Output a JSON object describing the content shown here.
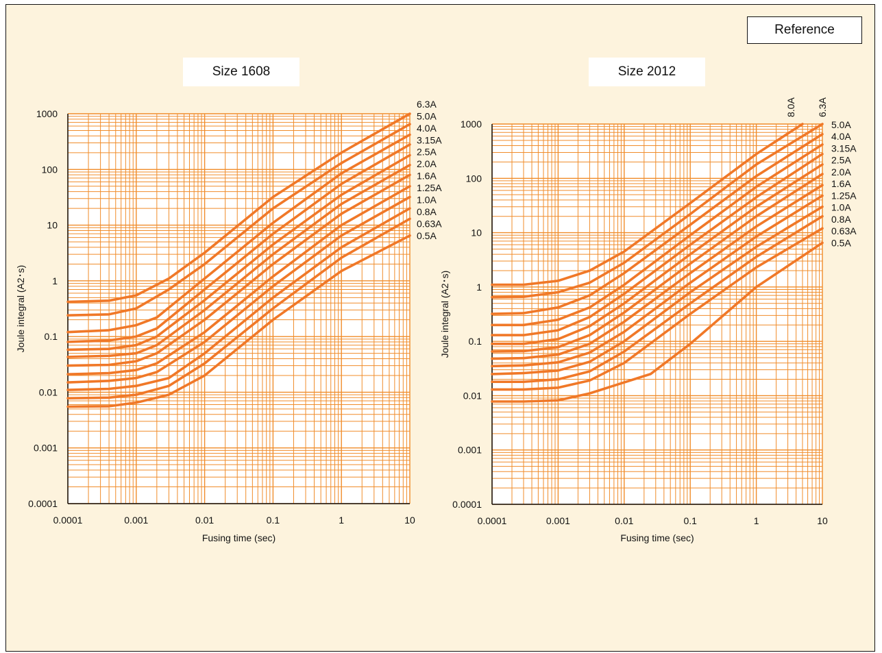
{
  "reference_label": "Reference",
  "colors": {
    "background": "#fdf3dd",
    "grid": "#f08c2a",
    "curve": "#f07828",
    "text": "#111111"
  },
  "chart_data": [
    {
      "type": "line",
      "title": "Size 1608",
      "xlabel": "Fusing time (sec)",
      "ylabel": "Joule integral (A2･s)",
      "xscale": "log",
      "yscale": "log",
      "xlim": [
        0.0001,
        10
      ],
      "ylim": [
        0.0001,
        1000
      ],
      "xticks": [
        "0.0001",
        "0.001",
        "0.01",
        "0.1",
        "1",
        "10"
      ],
      "yticks": [
        "0.0001",
        "0.001",
        "0.01",
        "0.1",
        "1",
        "10",
        "100",
        "1000"
      ],
      "grid": true,
      "legend": "series labels at right end of curves",
      "series": [
        {
          "name": "6.3A",
          "x": [
            0.0001,
            0.0004,
            0.001,
            0.003,
            0.01,
            0.1,
            1,
            10
          ],
          "y": [
            0.42,
            0.44,
            0.55,
            1.1,
            3.2,
            32,
            200,
            1000
          ]
        },
        {
          "name": "5.0A",
          "x": [
            0.0001,
            0.0004,
            0.001,
            0.003,
            0.01,
            0.1,
            1,
            10
          ],
          "y": [
            0.24,
            0.25,
            0.32,
            0.7,
            2,
            20,
            130,
            650
          ]
        },
        {
          "name": "4.0A",
          "x": [
            0.0001,
            0.0004,
            0.001,
            0.002,
            0.01,
            0.1,
            1,
            10
          ],
          "y": [
            0.12,
            0.13,
            0.16,
            0.22,
            1.1,
            11,
            85,
            420
          ]
        },
        {
          "name": "3.15A",
          "x": [
            0.0001,
            0.0004,
            0.001,
            0.002,
            0.01,
            0.1,
            1,
            10
          ],
          "y": [
            0.08,
            0.085,
            0.1,
            0.14,
            0.7,
            7,
            55,
            280
          ]
        },
        {
          "name": "2.5A",
          "x": [
            0.0001,
            0.0004,
            0.001,
            0.002,
            0.01,
            0.1,
            1,
            10
          ],
          "y": [
            0.058,
            0.06,
            0.07,
            0.1,
            0.45,
            4.5,
            35,
            180
          ]
        },
        {
          "name": "2.0A",
          "x": [
            0.0001,
            0.0004,
            0.001,
            0.002,
            0.01,
            0.1,
            1,
            10
          ],
          "y": [
            0.043,
            0.045,
            0.05,
            0.07,
            0.3,
            3,
            24,
            120
          ]
        },
        {
          "name": "1.6A",
          "x": [
            0.0001,
            0.0004,
            0.001,
            0.002,
            0.01,
            0.1,
            1,
            10
          ],
          "y": [
            0.03,
            0.031,
            0.036,
            0.05,
            0.2,
            2,
            16,
            80
          ]
        },
        {
          "name": "1.25A",
          "x": [
            0.0001,
            0.0004,
            0.001,
            0.002,
            0.01,
            0.1,
            1,
            10
          ],
          "y": [
            0.021,
            0.022,
            0.025,
            0.033,
            0.12,
            1.2,
            10,
            50
          ]
        },
        {
          "name": "1.0A",
          "x": [
            0.0001,
            0.0004,
            0.001,
            0.002,
            0.01,
            0.1,
            1,
            10
          ],
          "y": [
            0.015,
            0.016,
            0.018,
            0.023,
            0.08,
            0.8,
            6.5,
            32
          ]
        },
        {
          "name": "0.8A",
          "x": [
            0.0001,
            0.0004,
            0.001,
            0.003,
            0.01,
            0.1,
            1,
            10
          ],
          "y": [
            0.011,
            0.0115,
            0.013,
            0.018,
            0.05,
            0.5,
            4,
            20
          ]
        },
        {
          "name": "0.63A",
          "x": [
            0.0001,
            0.0004,
            0.001,
            0.003,
            0.01,
            0.1,
            1,
            10
          ],
          "y": [
            0.0078,
            0.008,
            0.009,
            0.013,
            0.033,
            0.32,
            2.6,
            13
          ]
        },
        {
          "name": "0.5A",
          "x": [
            0.0001,
            0.0004,
            0.001,
            0.003,
            0.01,
            0.1,
            1,
            10
          ],
          "y": [
            0.0055,
            0.0056,
            0.0065,
            0.009,
            0.02,
            0.2,
            1.5,
            6.5
          ]
        }
      ]
    },
    {
      "type": "line",
      "title": "Size 2012",
      "xlabel": "Fusing time (sec)",
      "ylabel": "Joule integral (A2･s)",
      "xscale": "log",
      "yscale": "log",
      "xlim": [
        0.0001,
        10
      ],
      "ylim": [
        0.0001,
        1000
      ],
      "xticks": [
        "0.0001",
        "0.001",
        "0.01",
        "0.1",
        "1",
        "10"
      ],
      "yticks": [
        "0.0001",
        "0.001",
        "0.01",
        "0.1",
        "1",
        "10",
        "100",
        "1000"
      ],
      "grid": true,
      "legend": "series labels at right end of curves",
      "series": [
        {
          "name": "8.0A",
          "x": [
            0.0001,
            0.0003,
            0.001,
            0.003,
            0.01,
            0.1,
            1,
            5
          ],
          "y": [
            1.1,
            1.1,
            1.3,
            2,
            4.5,
            35,
            280,
            1000
          ]
        },
        {
          "name": "6.3A",
          "x": [
            0.0001,
            0.0003,
            0.001,
            0.003,
            0.01,
            0.1,
            1,
            10
          ],
          "y": [
            0.65,
            0.66,
            0.8,
            1.2,
            2.8,
            22,
            180,
            1000
          ]
        },
        {
          "name": "5.0A",
          "x": [
            0.0001,
            0.0003,
            0.001,
            0.003,
            0.01,
            0.1,
            1,
            10
          ],
          "y": [
            0.32,
            0.33,
            0.42,
            0.7,
            1.8,
            14,
            110,
            650
          ]
        },
        {
          "name": "4.0A",
          "x": [
            0.0001,
            0.0003,
            0.001,
            0.003,
            0.01,
            0.1,
            1,
            10
          ],
          "y": [
            0.2,
            0.2,
            0.25,
            0.42,
            1.1,
            9,
            70,
            420
          ]
        },
        {
          "name": "3.15A",
          "x": [
            0.0001,
            0.0003,
            0.001,
            0.003,
            0.01,
            0.1,
            1,
            10
          ],
          "y": [
            0.13,
            0.13,
            0.16,
            0.28,
            0.75,
            6,
            45,
            280
          ]
        },
        {
          "name": "2.5A",
          "x": [
            0.0001,
            0.0003,
            0.001,
            0.003,
            0.01,
            0.1,
            1,
            10
          ],
          "y": [
            0.09,
            0.09,
            0.11,
            0.19,
            0.5,
            4,
            30,
            180
          ]
        },
        {
          "name": "2.0A",
          "x": [
            0.0001,
            0.0003,
            0.001,
            0.003,
            0.01,
            0.1,
            1,
            10
          ],
          "y": [
            0.065,
            0.066,
            0.078,
            0.13,
            0.34,
            2.7,
            20,
            120
          ]
        },
        {
          "name": "1.6A",
          "x": [
            0.0001,
            0.0003,
            0.001,
            0.003,
            0.01,
            0.1,
            1,
            10
          ],
          "y": [
            0.048,
            0.049,
            0.057,
            0.09,
            0.23,
            1.8,
            13,
            75
          ]
        },
        {
          "name": "1.25A",
          "x": [
            0.0001,
            0.0003,
            0.001,
            0.003,
            0.01,
            0.1,
            1,
            10
          ],
          "y": [
            0.035,
            0.036,
            0.041,
            0.062,
            0.15,
            1.2,
            8.5,
            48
          ]
        },
        {
          "name": "1.0A",
          "x": [
            0.0001,
            0.0003,
            0.001,
            0.003,
            0.01,
            0.1,
            1,
            10
          ],
          "y": [
            0.025,
            0.026,
            0.029,
            0.042,
            0.1,
            0.8,
            5.5,
            30
          ]
        },
        {
          "name": "0.8A",
          "x": [
            0.0001,
            0.0003,
            0.001,
            0.003,
            0.01,
            0.1,
            1,
            10
          ],
          "y": [
            0.018,
            0.018,
            0.02,
            0.028,
            0.065,
            0.5,
            3.6,
            20
          ]
        },
        {
          "name": "0.63A",
          "x": [
            0.0001,
            0.0003,
            0.001,
            0.003,
            0.01,
            0.1,
            1,
            10
          ],
          "y": [
            0.013,
            0.013,
            0.014,
            0.019,
            0.04,
            0.32,
            2.3,
            12
          ]
        },
        {
          "name": "0.5A",
          "x": [
            0.0001,
            0.0003,
            0.001,
            0.003,
            0.025,
            0.1,
            1,
            10
          ],
          "y": [
            0.0078,
            0.0078,
            0.0082,
            0.011,
            0.025,
            0.09,
            1,
            6.5
          ]
        }
      ]
    }
  ]
}
